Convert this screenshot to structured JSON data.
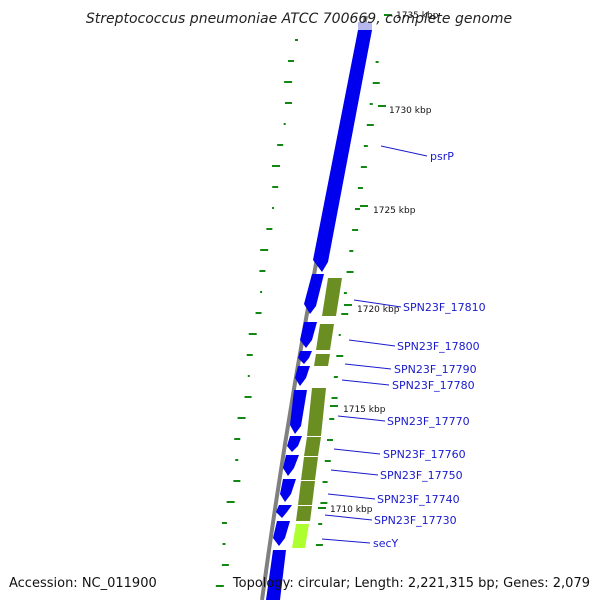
{
  "title": "Streptococcus pneumoniae ATCC 700669, complete genome",
  "footer": {
    "accession": "Accession: NC_011900",
    "summary": "Topology: circular; Length: 2,221,315 bp; Genes: 2,079"
  },
  "colors": {
    "backbone": "#808080",
    "cds_forward": "#0000ee",
    "cds_reverse": "#6b8e23",
    "rna": "#adff2f",
    "gc_ticks": "#118811",
    "label_text": "#1a1acc",
    "label_line": "#1a1acc"
  },
  "kbp_ticks": [
    {
      "label": "1735 kbp"
    },
    {
      "label": "1730 kbp"
    },
    {
      "label": "1725 kbp"
    },
    {
      "label": "1720 kbp"
    },
    {
      "label": "1715 kbp"
    },
    {
      "label": "1710 kbp"
    }
  ],
  "gene_labels": [
    {
      "name": "psrP"
    },
    {
      "name": "SPN23F_17810"
    },
    {
      "name": "SPN23F_17800"
    },
    {
      "name": "SPN23F_17790"
    },
    {
      "name": "SPN23F_17780"
    },
    {
      "name": "SPN23F_17770"
    },
    {
      "name": "SPN23F_17760"
    },
    {
      "name": "SPN23F_17750"
    },
    {
      "name": "SPN23F_17740"
    },
    {
      "name": "SPN23F_17730"
    },
    {
      "name": "secY"
    }
  ]
}
